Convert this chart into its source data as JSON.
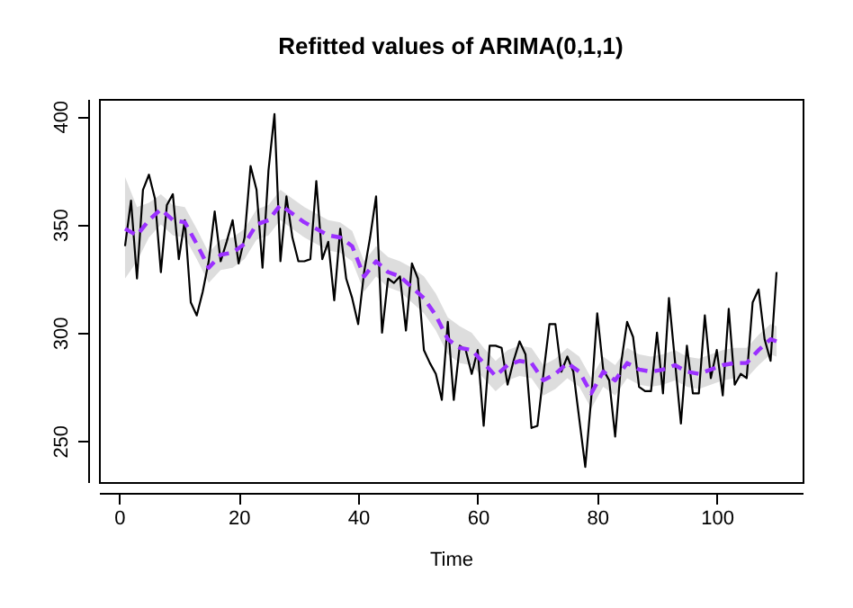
{
  "chart_data": {
    "type": "line",
    "title": "Refitted values of ARIMA(0,1,1)",
    "xlabel": "Time",
    "xlim": [
      -3.36,
      114.36
    ],
    "ylim": [
      231,
      408
    ],
    "xticks": [
      0,
      20,
      40,
      60,
      80,
      100
    ],
    "yticks": [
      250,
      300,
      350,
      400
    ],
    "grid": false,
    "series": [
      {
        "color": "#000000",
        "x": [
          1,
          2,
          3,
          4,
          5,
          6,
          7,
          8,
          9,
          10,
          11,
          12,
          13,
          14,
          15,
          16,
          17,
          18,
          19,
          20,
          21,
          22,
          23,
          24,
          25,
          26,
          27,
          28,
          29,
          30,
          31,
          32,
          33,
          34,
          35,
          36,
          37,
          38,
          39,
          40,
          41,
          42,
          43,
          44,
          45,
          46,
          47,
          48,
          49,
          50,
          51,
          52,
          53,
          54,
          55,
          56,
          57,
          58,
          59,
          60,
          61,
          62,
          63,
          64,
          65,
          66,
          67,
          68,
          69,
          70,
          71,
          72,
          73,
          74,
          75,
          76,
          77,
          78,
          79,
          80,
          81,
          82,
          83,
          84,
          85,
          86,
          87,
          88,
          89,
          90,
          91,
          92,
          93,
          94,
          95,
          96,
          97,
          98,
          99,
          100,
          101,
          102,
          103,
          104,
          105,
          106,
          107,
          108,
          109,
          110
        ],
        "values": [
          340,
          361,
          325,
          366,
          373,
          362,
          328,
          359,
          364,
          334,
          352,
          314,
          308,
          319,
          333,
          356,
          333,
          342,
          352,
          332,
          344,
          377,
          366,
          330,
          375,
          401,
          333,
          363,
          344,
          333,
          333,
          334,
          370,
          334,
          342,
          315,
          348,
          325,
          316,
          304,
          328,
          344,
          363,
          300,
          325,
          323,
          326,
          301,
          332,
          325,
          292,
          286,
          281,
          269,
          305,
          269,
          294,
          292,
          281,
          292,
          257,
          294,
          294,
          293,
          276,
          287,
          296,
          290,
          256,
          257,
          281,
          304,
          304,
          282,
          289,
          282,
          260,
          238,
          270,
          309,
          283,
          278,
          252,
          286,
          305,
          298,
          275,
          273,
          273,
          300,
          272,
          316,
          287,
          258,
          294,
          272,
          272,
          308,
          279,
          292,
          271,
          311,
          276,
          281,
          279,
          314,
          320,
          297,
          287,
          328
        ]
      },
      {
        "color": "#9b30ff",
        "line_style": "dashed",
        "x": [
          1,
          3,
          5,
          7,
          9,
          11,
          13,
          15,
          17,
          19,
          21,
          23,
          25,
          27,
          29,
          31,
          33,
          35,
          37,
          39,
          41,
          43,
          45,
          47,
          49,
          51,
          53,
          55,
          57,
          59,
          61,
          63,
          65,
          67,
          69,
          71,
          73,
          75,
          77,
          79,
          81,
          83,
          85,
          87,
          89,
          91,
          93,
          95,
          97,
          99,
          101,
          103,
          105,
          107,
          109,
          110
        ],
        "values": [
          348,
          345,
          352,
          357,
          352,
          351,
          341,
          330,
          336,
          337,
          341,
          350,
          352,
          359,
          355,
          351,
          348,
          345,
          344,
          340,
          326,
          333,
          328,
          326,
          321,
          316,
          308,
          297,
          293,
          292,
          286,
          280,
          285,
          287,
          286,
          278,
          281,
          286,
          282,
          272,
          282,
          278,
          286,
          283,
          282,
          283,
          285,
          282,
          281,
          283,
          285,
          286,
          286,
          292,
          297,
          296
        ],
        "lower": [
          325,
          333,
          344,
          350,
          345,
          344,
          334,
          323,
          329,
          330,
          334,
          343,
          345,
          352,
          348,
          344,
          341,
          338,
          337,
          333,
          319,
          326,
          321,
          319,
          314,
          309,
          301,
          290,
          286,
          285,
          279,
          273,
          278,
          280,
          279,
          271,
          274,
          279,
          275,
          265,
          275,
          271,
          279,
          276,
          275,
          276,
          278,
          275,
          274,
          276,
          278,
          279,
          279,
          285,
          290,
          289
        ],
        "upper": [
          372,
          358,
          360,
          364,
          359,
          358,
          348,
          337,
          343,
          344,
          348,
          357,
          359,
          366,
          362,
          358,
          355,
          352,
          351,
          347,
          333,
          340,
          335,
          333,
          330,
          326,
          318,
          307,
          303,
          300,
          293,
          287,
          292,
          294,
          293,
          285,
          288,
          293,
          289,
          279,
          289,
          285,
          293,
          290,
          289,
          290,
          292,
          289,
          288,
          290,
          292,
          293,
          293,
          299,
          304,
          303
        ]
      }
    ]
  }
}
